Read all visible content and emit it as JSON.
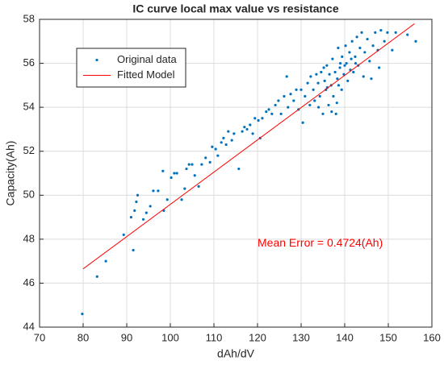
{
  "chart_data": {
    "type": "scatter",
    "title": "IC curve local max value vs resistance",
    "x_label": "dAh/dV",
    "y_label": "Capacity(Ah)",
    "annotation": "Mean Error = 0.4724(Ah)",
    "xlim": [
      70,
      160
    ],
    "ylim": [
      44,
      58
    ],
    "xticks": [
      70,
      80,
      90,
      100,
      110,
      120,
      130,
      140,
      150,
      160
    ],
    "yticks": [
      44,
      46,
      48,
      50,
      52,
      54,
      56,
      58
    ],
    "grid": true,
    "legend": "northwest",
    "series": [
      {
        "name": "Original data",
        "type": "scatter",
        "color": "#0072bd",
        "x": [
          79.8,
          83.2,
          85.2,
          89.3,
          91.0,
          91.5,
          91.8,
          92.2,
          92.5,
          93.8,
          94.5,
          95.4,
          96.1,
          97.2,
          98.3,
          98.5,
          99.3,
          100.2,
          100.9,
          101.5,
          102.6,
          103.3,
          103.7,
          104.3,
          105.0,
          105.6,
          106.5,
          107.2,
          108.1,
          109.1,
          109.6,
          110.4,
          110.9,
          111.7,
          112.2,
          112.8,
          113.3,
          114.1,
          114.6,
          115.7,
          116.5,
          117.0,
          117.6,
          118.3,
          118.9,
          119.4,
          120.2,
          120.6,
          121.1,
          122.0,
          122.6,
          123.3,
          124.1,
          124.8,
          125.4,
          126.1,
          126.7,
          127.0,
          127.6,
          128.3,
          128.9,
          129.4,
          130.0,
          130.4,
          130.9,
          131.5,
          132.0,
          132.2,
          132.8,
          133.1,
          133.5,
          133.9,
          134.3,
          134.6,
          135.0,
          135.4,
          135.7,
          135.9,
          136.3,
          136.5,
          136.9,
          137.2,
          137.4,
          137.8,
          138.0,
          138.3,
          138.5,
          138.9,
          139.3,
          139.4,
          139.8,
          140.2,
          140.4,
          140.7,
          141.1,
          141.3,
          141.7,
          142.0,
          142.4,
          142.8,
          143.1,
          143.5,
          143.9,
          144.3,
          144.6,
          145.2,
          145.7,
          146.1,
          146.5,
          147.0,
          147.6,
          147.9,
          148.3,
          149.1,
          149.8,
          150.9,
          151.7,
          154.4,
          156.3,
          138.2,
          137.0,
          136.0,
          135.2,
          134.0,
          138.6,
          139.0,
          140.0,
          141.5,
          142.5
        ],
        "values": [
          44.6,
          46.3,
          47.0,
          48.2,
          49.0,
          47.5,
          49.3,
          49.7,
          50.0,
          48.9,
          49.2,
          49.5,
          50.2,
          50.2,
          51.1,
          49.3,
          49.8,
          50.8,
          51.0,
          51.0,
          49.8,
          50.3,
          51.2,
          51.4,
          51.4,
          50.9,
          50.4,
          51.4,
          51.7,
          51.5,
          52.2,
          52.1,
          51.8,
          52.4,
          52.6,
          52.3,
          52.9,
          52.5,
          52.8,
          51.2,
          52.9,
          53.1,
          53.0,
          53.2,
          52.8,
          53.5,
          53.4,
          52.6,
          53.5,
          53.8,
          53.9,
          53.7,
          54.1,
          54.3,
          53.7,
          54.5,
          55.4,
          54.0,
          54.6,
          54.3,
          54.8,
          53.9,
          54.8,
          53.3,
          54.5,
          55.1,
          54.1,
          55.4,
          54.8,
          54.3,
          55.5,
          55.1,
          54.5,
          55.6,
          53.7,
          55.2,
          54.8,
          55.9,
          54.1,
          55.5,
          55.0,
          56.2,
          54.5,
          55.6,
          53.7,
          55.3,
          56.7,
          55.8,
          54.8,
          56.3,
          55.5,
          56.8,
          56.0,
          55.2,
          56.5,
          55.7,
          57.0,
          55.6,
          56.3,
          57.2,
          55.9,
          56.7,
          57.4,
          55.4,
          56.5,
          57.1,
          56.1,
          55.3,
          56.8,
          57.4,
          56.6,
          55.8,
          57.5,
          57.0,
          57.4,
          56.6,
          57.4,
          57.3,
          57.0,
          54.2,
          53.8,
          54.9,
          55.8,
          54.0,
          55.0,
          56.0,
          55.9,
          56.2,
          56.0
        ]
      },
      {
        "name": "Fitted Model",
        "type": "line",
        "color": "#ff0000",
        "x": [
          80,
          156
        ],
        "values": [
          46.65,
          57.8
        ]
      }
    ]
  }
}
